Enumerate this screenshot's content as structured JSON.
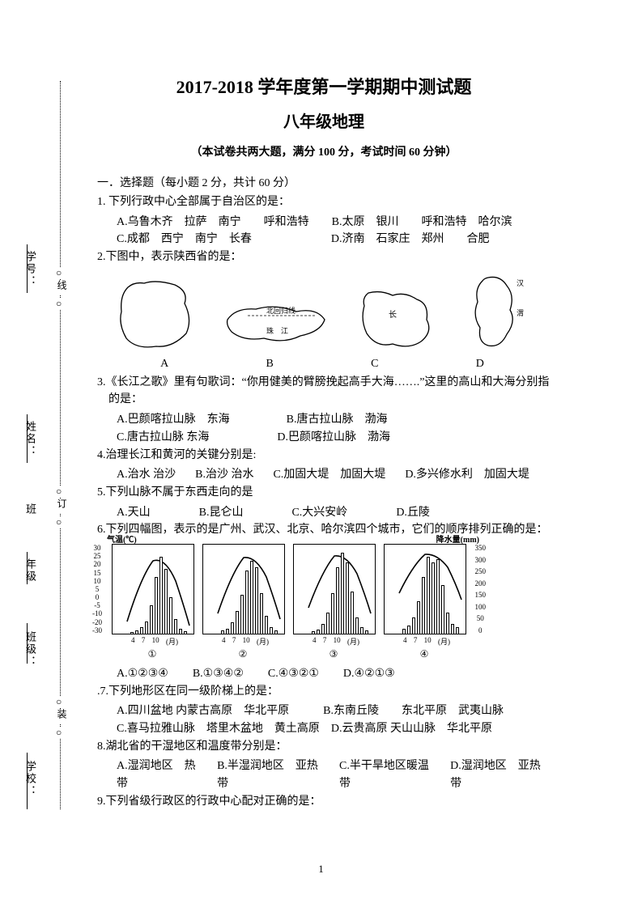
{
  "header": {
    "title1": "2017-2018 学年度第一学期期中测试题",
    "title2": "八年级地理",
    "subtitle": "（本试卷共两大题，满分 100 分，考试时间 60 分钟）"
  },
  "section1": {
    "heading": "一．选择题（每小题 2 分，共计 60 分）"
  },
  "q1": {
    "stem": "1. 下列行政中心全部属于自治区的是：",
    "optA": "A.乌鲁木齐　拉萨　南宁　　呼和浩特",
    "optB": "B.太原　银川　　呼和浩特　哈尔滨",
    "optC": "C.成都　西宁　南宁　长春",
    "optD": "D.济南　石家庄　郑州　　合肥"
  },
  "q2": {
    "stem": "2.下图中，表示陕西省的是：",
    "labels": {
      "a": "A",
      "b": "B",
      "c": "C",
      "d": "D"
    },
    "map_annot": {
      "b1": "北回归线",
      "b2": "珠　江",
      "c1": "长",
      "d1": "汉",
      "d2": "渭"
    }
  },
  "q3": {
    "stem": "3.《长江之歌》里有句歌词：“你用健美的臂膀挽起高手大海…….”这里的高山和大海分别指",
    "stem2": "的是：",
    "optA": "A.巴颜喀拉山脉　东海",
    "optB": "B.唐古拉山脉　渤海",
    "optC": "C.唐古拉山脉 东海",
    "optD": "D.巴颜喀拉山脉　渤海"
  },
  "q4": {
    "stem": "4.治理长江和黄河的关键分别是:",
    "optA": "A.治水 治沙",
    "optB": "B.治沙 治水",
    "optC": "C.加固大堤　加固大堤",
    "optD": "D.多兴修水利　加固大堤"
  },
  "q5": {
    "stem": "5.下列山脉不属于东西走向的是",
    "optA": "A.天山",
    "optB": "B.昆仑山",
    "optC": "C.大兴安岭",
    "optD": "D.丘陵"
  },
  "q6": {
    "stem": "6.下列四幅图，表示的是广州、武汉、北京、哈尔滨四个城市，它们的顺序排列正确的是：",
    "axis_left": "气温(℃)",
    "axis_right": "降水量(mm)",
    "temp_ticks": [
      "30",
      "25",
      "20",
      "15",
      "10",
      "5",
      "0",
      "-5",
      "-10",
      "-20",
      "-30"
    ],
    "precip_ticks": [
      "350",
      "300",
      "250",
      "200",
      "150",
      "100",
      "50",
      "0"
    ],
    "xticks": [
      "4",
      "7",
      "10",
      "(月)"
    ],
    "chart_labels": {
      "c1": "①",
      "c2": "②",
      "c3": "③",
      "c4": "④"
    },
    "bars": {
      "c1": [
        2,
        4,
        8,
        15,
        35,
        70,
        95,
        80,
        45,
        18,
        6,
        3
      ],
      "c2": [
        4,
        6,
        14,
        28,
        48,
        78,
        90,
        82,
        50,
        22,
        8,
        4
      ],
      "c3": [
        3,
        5,
        12,
        26,
        50,
        82,
        100,
        88,
        52,
        20,
        8,
        4
      ],
      "c4": [
        6,
        10,
        20,
        40,
        70,
        95,
        88,
        92,
        60,
        26,
        12,
        8
      ]
    },
    "optA": "A.①②③④",
    "optB": "B.①③④②",
    "optC": "C.④③②①",
    "optD": "D.④②①③"
  },
  "q7": {
    "stem": ".7.下列地形区在同一级阶梯上的是：",
    "optA": "A.四川盆地 内蒙古高原　华北平原",
    "optB": "B.东南丘陵　　东北平原　武夷山脉",
    "optC": "C.喜马拉雅山脉　塔里木盆地　黄土高原",
    "optD": "D.云贵高原 天山山脉　华北平原"
  },
  "q8": {
    "stem": "8.湖北省的干湿地区和温度带分别是：",
    "optA": "A.湿润地区　热带",
    "optB": "B.半湿润地区　亚热带",
    "optC": "C.半干旱地区暖温带",
    "optD": "D.湿润地区　亚热带"
  },
  "q9": {
    "stem": "9.下列省级行政区的行政中心配对正确的是："
  },
  "margin": {
    "zhuang": "装",
    "ding": "订",
    "xian": "线",
    "o": "○",
    "school": "学校：",
    "class": "班级：",
    "grade": "年级",
    "ban": "班",
    "name": "姓名：",
    "number": "学号："
  },
  "page_number": "1",
  "colors": {
    "text": "#000000",
    "bg": "#ffffff"
  }
}
